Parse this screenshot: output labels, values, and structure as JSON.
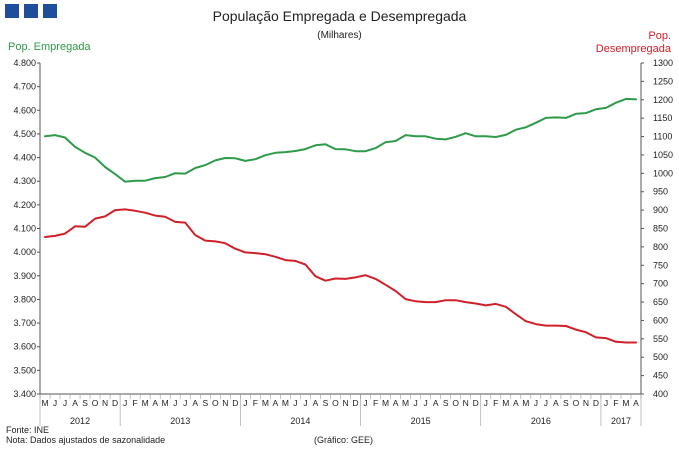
{
  "header": {
    "title": "População Empregada e Desempregada",
    "subtitle": "(Milhares)",
    "left_axis_label": "Pop. Empregada",
    "right_axis_label_line1": "Pop.",
    "right_axis_label_line2": "Desempregada"
  },
  "footer": {
    "source": "Fonte: INE",
    "note": "Nota: Dados ajustados de sazonalidade",
    "credit": "(Gráfico: GEE)"
  },
  "colors": {
    "employed": "#2e9a4a",
    "unemployed": "#d0202a",
    "logo": "#1f4e9a",
    "axis": "#555555"
  },
  "chart_data": {
    "type": "line",
    "title": "População Empregada e Desempregada",
    "subtitle": "(Milhares)",
    "month_letters": [
      "M",
      "J",
      "J",
      "A",
      "S",
      "O",
      "N",
      "D",
      "J",
      "F",
      "M",
      "A",
      "M",
      "J",
      "J",
      "A",
      "S",
      "O",
      "N",
      "D",
      "J",
      "F",
      "M",
      "A",
      "M",
      "J",
      "J",
      "A",
      "S",
      "O",
      "N",
      "D",
      "J",
      "F",
      "M",
      "A",
      "M",
      "J",
      "J",
      "A",
      "S",
      "O",
      "N",
      "D",
      "J",
      "F",
      "M",
      "A",
      "M",
      "J",
      "J",
      "A",
      "S",
      "O",
      "N",
      "D",
      "J",
      "F",
      "M",
      "A"
    ],
    "years": [
      {
        "label": "2012",
        "start": 0,
        "end": 8
      },
      {
        "label": "2013",
        "start": 8,
        "end": 20
      },
      {
        "label": "2014",
        "start": 20,
        "end": 32
      },
      {
        "label": "2015",
        "start": 32,
        "end": 44
      },
      {
        "label": "2016",
        "start": 44,
        "end": 56
      },
      {
        "label": "2017",
        "start": 56,
        "end": 60
      }
    ],
    "y_left": {
      "label": "Pop. Empregada",
      "min": 3400,
      "max": 4800,
      "step": 100,
      "ticks": [
        "3.400",
        "3.500",
        "3.600",
        "3.700",
        "3.800",
        "3.900",
        "4.000",
        "4.100",
        "4.200",
        "4.300",
        "4.400",
        "4.500",
        "4.600",
        "4.700",
        "4.800"
      ]
    },
    "y_right": {
      "label": "Pop. Desempregada",
      "min": 400,
      "max": 1300,
      "step": 50,
      "ticks": [
        "400",
        "450",
        "500",
        "550",
        "600",
        "650",
        "700",
        "750",
        "800",
        "850",
        "900",
        "950",
        "1000",
        "1050",
        "1100",
        "1150",
        "1200",
        "1250",
        "1300"
      ]
    },
    "series": [
      {
        "name": "Pop. Empregada",
        "axis": "left",
        "values": [
          4490,
          4495,
          4485,
          4445,
          4420,
          4400,
          4360,
          4330,
          4298,
          4302,
          4302,
          4313,
          4318,
          4334,
          4332,
          4356,
          4368,
          4388,
          4398,
          4397,
          4386,
          4393,
          4410,
          4420,
          4423,
          4428,
          4436,
          4452,
          4456,
          4436,
          4435,
          4427,
          4427,
          4440,
          4465,
          4470,
          4495,
          4490,
          4490,
          4480,
          4477,
          4488,
          4503,
          4490,
          4490,
          4487,
          4496,
          4518,
          4528,
          4547,
          4568,
          4570,
          4568,
          4585,
          4588,
          4604,
          4610,
          4632,
          4648,
          4646
        ]
      },
      {
        "name": "Pop. Desempregada",
        "axis": "right",
        "values": [
          827,
          830,
          836,
          856,
          855,
          877,
          883,
          900,
          902,
          898,
          893,
          885,
          882,
          868,
          866,
          832,
          817,
          815,
          810,
          795,
          785,
          783,
          780,
          773,
          764,
          762,
          752,
          720,
          708,
          714,
          713,
          717,
          723,
          713,
          697,
          680,
          658,
          652,
          650,
          650,
          655,
          655,
          650,
          646,
          641,
          645,
          637,
          617,
          598,
          590,
          586,
          586,
          585,
          575,
          568,
          554,
          552,
          542,
          540,
          540
        ]
      }
    ]
  }
}
